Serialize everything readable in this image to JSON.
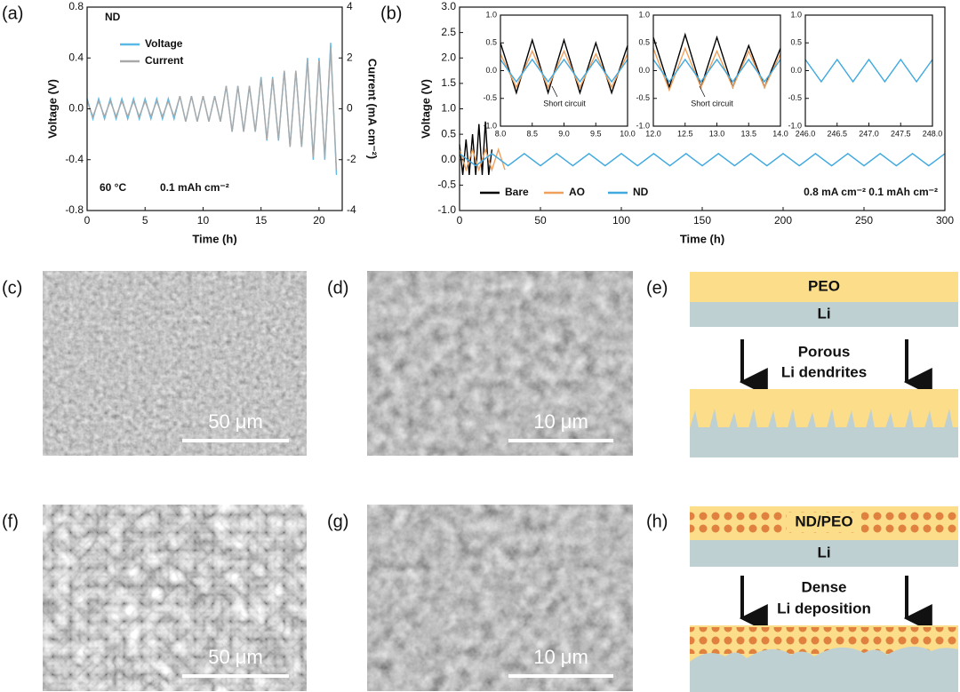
{
  "panel_labels": [
    "(a)",
    "(b)",
    "(c)",
    "(d)",
    "(e)",
    "(f)",
    "(g)",
    "(h)"
  ],
  "chart_data": [
    {
      "type": "line",
      "xlabel": "Time (h)",
      "ylabel": "Voltage (V)",
      "y2label": "Current (mA cm⁻²)",
      "annotations": [
        "ND",
        "60 °C",
        "0.1 mAh cm⁻²"
      ],
      "legend": "upper left",
      "xlim": [
        0,
        22
      ],
      "xticks": [
        0,
        5,
        10,
        15,
        20
      ],
      "ylim": [
        -0.8,
        0.8
      ],
      "yticks": [
        -0.8,
        -0.4,
        {
          "value": 0,
          "label": "0.0"
        },
        0.4,
        0.8
      ],
      "y2lim": [
        -4,
        4
      ],
      "y2ticks": [
        -4,
        -2,
        0,
        2,
        4
      ],
      "x": [
        0,
        0.5,
        1,
        1.5,
        2,
        2.5,
        3,
        3.5,
        4,
        4.5,
        5,
        5.5,
        6,
        6.5,
        7,
        7.5,
        8,
        8.5,
        9,
        9.5,
        10,
        10.5,
        11,
        11.5,
        12,
        12.5,
        13,
        13.5,
        14,
        14.5,
        15,
        15.5,
        16,
        16.5,
        17,
        17.5,
        18,
        18.5,
        19,
        19.5,
        20,
        20.5,
        21,
        21.5
      ],
      "series": [
        {
          "name": "Voltage",
          "color": "#5cb9e6",
          "values": [
            0.08,
            -0.08,
            0.08,
            -0.08,
            0.08,
            -0.08,
            0.08,
            -0.08,
            0.08,
            -0.08,
            0.08,
            -0.08,
            0.08,
            -0.08,
            0.08,
            -0.08,
            0.1,
            -0.1,
            0.1,
            -0.1,
            0.1,
            -0.1,
            0.1,
            -0.1,
            0.18,
            -0.18,
            0.18,
            -0.18,
            0.18,
            -0.18,
            0.25,
            -0.25,
            0.25,
            -0.25,
            0.3,
            -0.3,
            0.3,
            -0.3,
            0.4,
            -0.4,
            0.4,
            -0.4,
            0.52,
            -0.52
          ]
        },
        {
          "name": "Current",
          "color": "#a9a9a9",
          "axis": "y2",
          "values": [
            0.3,
            -0.3,
            0.3,
            -0.3,
            0.3,
            -0.3,
            0.3,
            -0.3,
            0.3,
            -0.3,
            0.3,
            -0.3,
            0.3,
            -0.3,
            0.3,
            -0.3,
            0.5,
            -0.5,
            0.5,
            -0.5,
            0.5,
            -0.5,
            0.5,
            -0.5,
            0.9,
            -0.9,
            0.9,
            -0.9,
            0.9,
            -0.9,
            1.2,
            -1.2,
            1.2,
            -1.2,
            1.5,
            -1.5,
            1.5,
            -1.5,
            1.9,
            -1.9,
            1.9,
            -1.9,
            2.4,
            -2.4
          ]
        }
      ]
    },
    {
      "type": "line",
      "xlabel": "Time (h)",
      "ylabel": "Voltage (V)",
      "annotations": [
        "0.8 mA cm⁻² 0.1 mAh cm⁻²"
      ],
      "legend": "lower left",
      "xlim": [
        0,
        300
      ],
      "xticks": [
        0,
        50,
        100,
        150,
        200,
        250,
        300
      ],
      "ylim": [
        -1,
        3
      ],
      "yticks": [
        {
          "value": -1,
          "label": "-1.0"
        },
        -0.5,
        {
          "value": 0,
          "label": "0.0"
        },
        0.5,
        {
          "value": 1,
          "label": "1.0"
        },
        1.5,
        {
          "value": 2,
          "label": "2.0"
        },
        2.5,
        {
          "value": 3,
          "label": "3.0"
        }
      ],
      "series": [
        {
          "name": "Bare",
          "color": "#000000",
          "x": [
            0,
            2,
            4,
            6,
            8,
            10,
            12,
            14,
            16,
            18,
            20
          ],
          "values": [
            0.3,
            -0.3,
            0.4,
            -0.3,
            0.5,
            -0.3,
            0.7,
            -0.3,
            0.75,
            -0.3,
            0.2
          ]
        },
        {
          "name": "AO",
          "color": "#f0a05a",
          "x": [
            0,
            4,
            8,
            12,
            16,
            20,
            24,
            28
          ],
          "values": [
            0.2,
            -0.2,
            0.2,
            -0.2,
            0.2,
            -0.2,
            0.2,
            -0.2
          ]
        },
        {
          "name": "ND",
          "color": "#3fa9e0",
          "x": [
            0,
            10,
            20,
            30,
            40,
            50,
            60,
            70,
            80,
            90,
            100,
            110,
            120,
            130,
            140,
            150,
            160,
            170,
            180,
            190,
            200,
            210,
            220,
            230,
            240,
            250,
            260,
            270,
            280,
            290,
            300
          ],
          "values": [
            0.12,
            -0.12,
            0.12,
            -0.12,
            0.12,
            -0.12,
            0.12,
            -0.12,
            0.12,
            -0.12,
            0.12,
            -0.12,
            0.12,
            -0.12,
            0.12,
            -0.12,
            0.12,
            -0.12,
            0.12,
            -0.12,
            0.12,
            -0.12,
            0.12,
            -0.12,
            0.12,
            -0.12,
            0.12,
            -0.12,
            0.12,
            -0.12,
            0.12
          ]
        }
      ]
    },
    {
      "type": "line",
      "annotations": [
        "Short circuit"
      ],
      "xlim": [
        8,
        10
      ],
      "xticks": [
        {
          "value": 8,
          "label": "8.0"
        },
        8.5,
        {
          "value": 9,
          "label": "9.0"
        },
        9.5,
        {
          "value": 10,
          "label": "10.0"
        }
      ],
      "ylim": [
        -1,
        1
      ],
      "yticks": [
        {
          "value": -1,
          "label": "-1.0"
        },
        -0.5,
        {
          "value": 0,
          "label": "0.0"
        },
        0.5,
        {
          "value": 1,
          "label": "1.0"
        }
      ],
      "x": [
        8,
        8.25,
        8.5,
        8.75,
        9,
        9.25,
        9.5,
        9.75,
        10
      ],
      "series": [
        {
          "color": "#000000",
          "values": [
            0.5,
            -0.4,
            0.55,
            -0.4,
            0.55,
            -0.4,
            0.5,
            -0.4,
            0.45
          ]
        },
        {
          "color": "#f0a05a",
          "values": [
            0.3,
            -0.3,
            0.35,
            -0.3,
            0.35,
            -0.3,
            0.3,
            -0.3,
            0.3
          ]
        },
        {
          "color": "#3fa9e0",
          "values": [
            0.2,
            -0.2,
            0.2,
            -0.2,
            0.2,
            -0.2,
            0.2,
            -0.2,
            0.2
          ]
        }
      ]
    },
    {
      "type": "line",
      "annotations": [
        "Short circuit"
      ],
      "xlim": [
        12,
        14
      ],
      "xticks": [
        {
          "value": 12,
          "label": "12.0"
        },
        12.5,
        {
          "value": 13,
          "label": "13.0"
        },
        13.5,
        {
          "value": 14,
          "label": "14.0"
        }
      ],
      "ylim": [
        -1,
        1
      ],
      "yticks": [
        {
          "value": -1,
          "label": "-1.0"
        },
        -0.5,
        {
          "value": 0,
          "label": "0.0"
        },
        0.5,
        {
          "value": 1,
          "label": "1.0"
        }
      ],
      "x": [
        12,
        12.25,
        12.5,
        12.75,
        13,
        13.25,
        13.5,
        13.75,
        14
      ],
      "series": [
        {
          "color": "#000000",
          "values": [
            0.6,
            -0.3,
            0.65,
            -0.3,
            0.6,
            -0.3,
            0.45,
            -0.3,
            0.4
          ]
        },
        {
          "color": "#f0a05a",
          "values": [
            0.4,
            -0.35,
            0.4,
            -0.3,
            0.35,
            -0.3,
            0.35,
            -0.3,
            0.3
          ]
        },
        {
          "color": "#3fa9e0",
          "values": [
            0.2,
            -0.2,
            0.2,
            -0.2,
            0.2,
            -0.2,
            0.2,
            -0.2,
            0.2
          ]
        }
      ]
    },
    {
      "type": "line",
      "xlim": [
        246,
        248
      ],
      "xticks": [
        {
          "value": 246,
          "label": "246.0"
        },
        246.5,
        {
          "value": 247,
          "label": "247.0"
        },
        247.5,
        {
          "value": 248,
          "label": "248.0"
        }
      ],
      "ylim": [
        -1,
        1
      ],
      "yticks": [
        {
          "value": -1,
          "label": "-1.0"
        },
        -0.5,
        {
          "value": 0,
          "label": "0.0"
        },
        0.5,
        {
          "value": 1,
          "label": "1.0"
        }
      ],
      "x": [
        246,
        246.25,
        246.5,
        246.75,
        247,
        247.25,
        247.5,
        247.75,
        248
      ],
      "series": [
        {
          "color": "#3fa9e0",
          "values": [
            0.2,
            -0.2,
            0.2,
            -0.2,
            0.2,
            -0.2,
            0.2,
            -0.2,
            0.2
          ]
        }
      ]
    }
  ],
  "images": [
    {
      "scale_bar": "50 μm"
    },
    {
      "scale_bar": "10 μm"
    },
    {
      "scale_bar": "50 μm"
    },
    {
      "scale_bar": "10 μm"
    }
  ],
  "diagrams": [
    {
      "top_layer": "PEO",
      "bottom_layer": "Li",
      "process": [
        "Porous",
        "Li dendrites"
      ]
    },
    {
      "top_layer": "ND/PEO",
      "bottom_layer": "Li",
      "process": [
        "Dense",
        "Li deposition"
      ]
    }
  ]
}
